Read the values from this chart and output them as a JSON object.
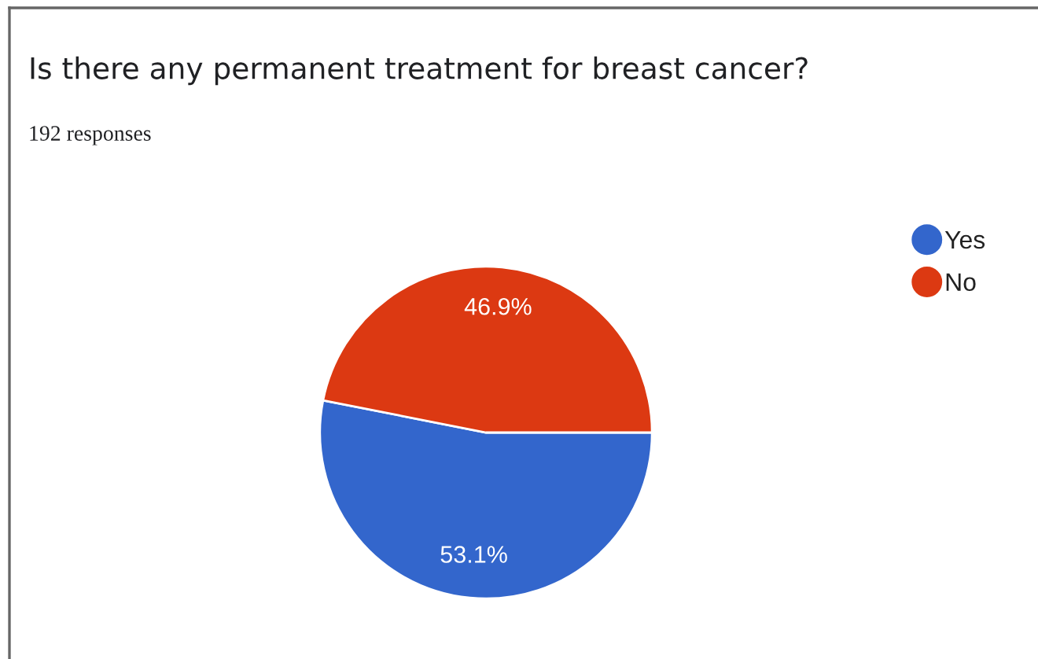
{
  "chart_data": {
    "type": "pie",
    "title": "Is there any permanent treatment for breast cancer?",
    "subtitle": "192 responses",
    "categories": [
      "Yes",
      "No"
    ],
    "values": [
      53.1,
      46.9
    ],
    "colors": [
      "#3366cc",
      "#dc3912"
    ],
    "value_labels": [
      "53.1%",
      "46.9%"
    ],
    "legend": "top right"
  }
}
